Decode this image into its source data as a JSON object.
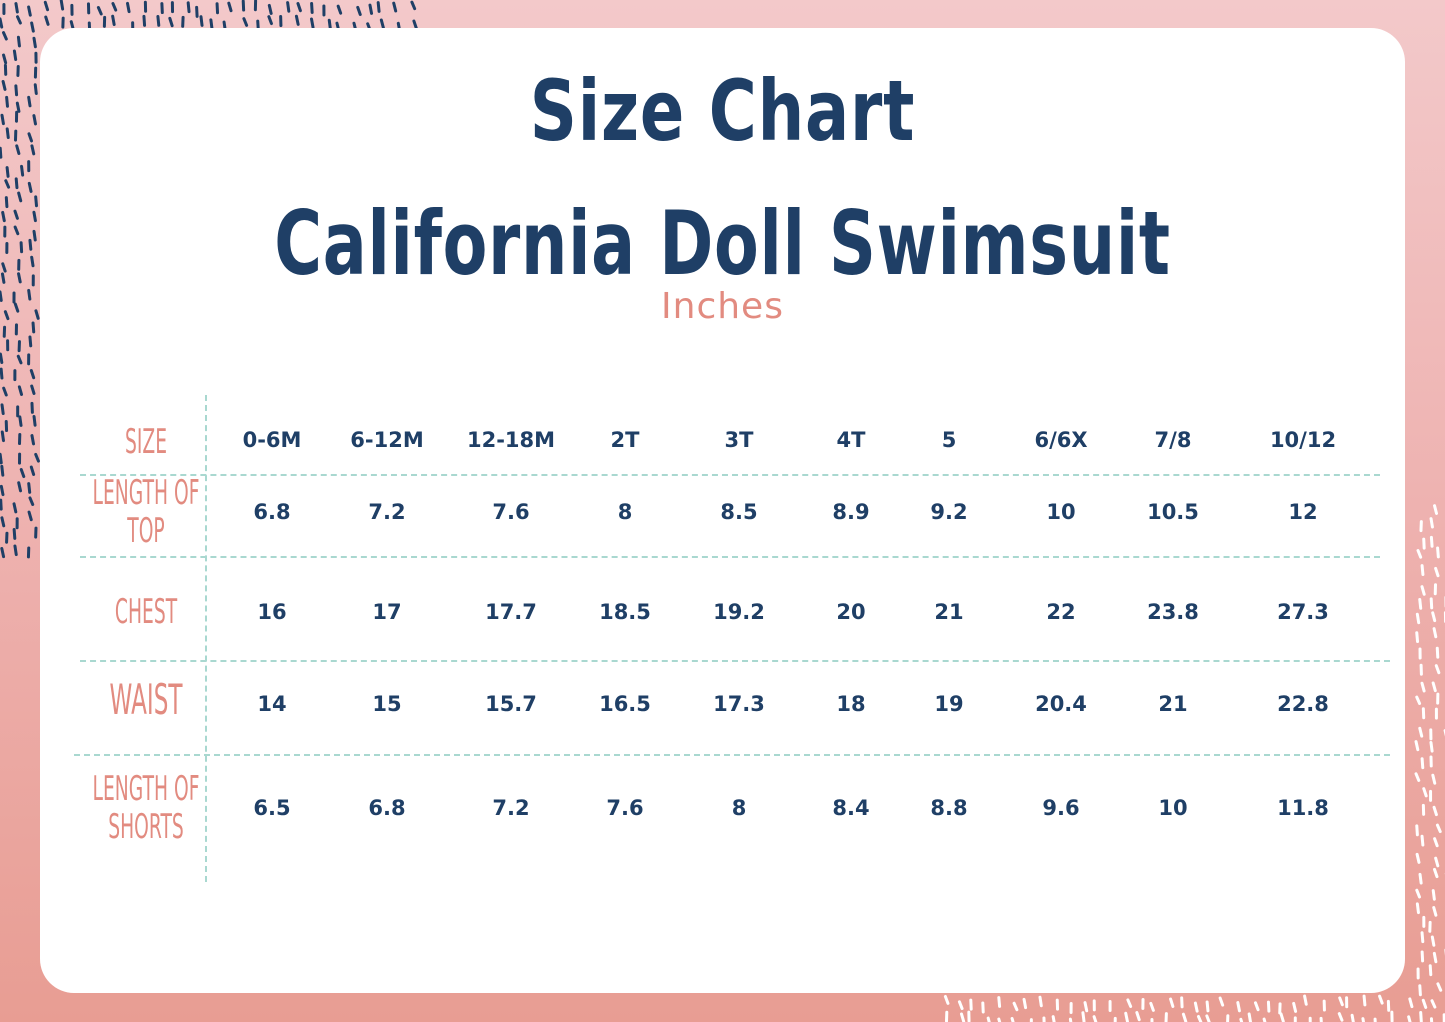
{
  "title": "Size Chart",
  "subtitle": "California Doll Swimsuit",
  "unit": "Inches",
  "colors": {
    "navy": "#1f3f66",
    "salmon": "#e28b80",
    "divider": "#a9d8d0",
    "background_top": "#f3c9ca",
    "background_bottom": "#e89d93"
  },
  "table": {
    "header_label": "SIZE",
    "sizes": [
      "0-6M",
      "6-12M",
      "12-18M",
      "2T",
      "3T",
      "4T",
      "5",
      "6/6X",
      "7/8",
      "10/12"
    ],
    "rows": [
      {
        "label_line1": "LENGTH OF",
        "label_line2": "TOP",
        "values": [
          "6.8",
          "7.2",
          "7.6",
          "8",
          "8.5",
          "8.9",
          "9.2",
          "10",
          "10.5",
          "12"
        ]
      },
      {
        "label_line1": "CHEST",
        "label_line2": "",
        "values": [
          "16",
          "17",
          "17.7",
          "18.5",
          "19.2",
          "20",
          "21",
          "22",
          "23.8",
          "27.3"
        ]
      },
      {
        "label_line1": "WAIST",
        "label_line2": "",
        "values": [
          "14",
          "15",
          "15.7",
          "16.5",
          "17.3",
          "18",
          "19",
          "20.4",
          "21",
          "22.8"
        ]
      },
      {
        "label_line1": "LENGTH OF",
        "label_line2": "SHORTS",
        "values": [
          "6.5",
          "6.8",
          "7.2",
          "7.6",
          "8",
          "8.4",
          "8.8",
          "9.6",
          "10",
          "11.8"
        ]
      }
    ]
  }
}
